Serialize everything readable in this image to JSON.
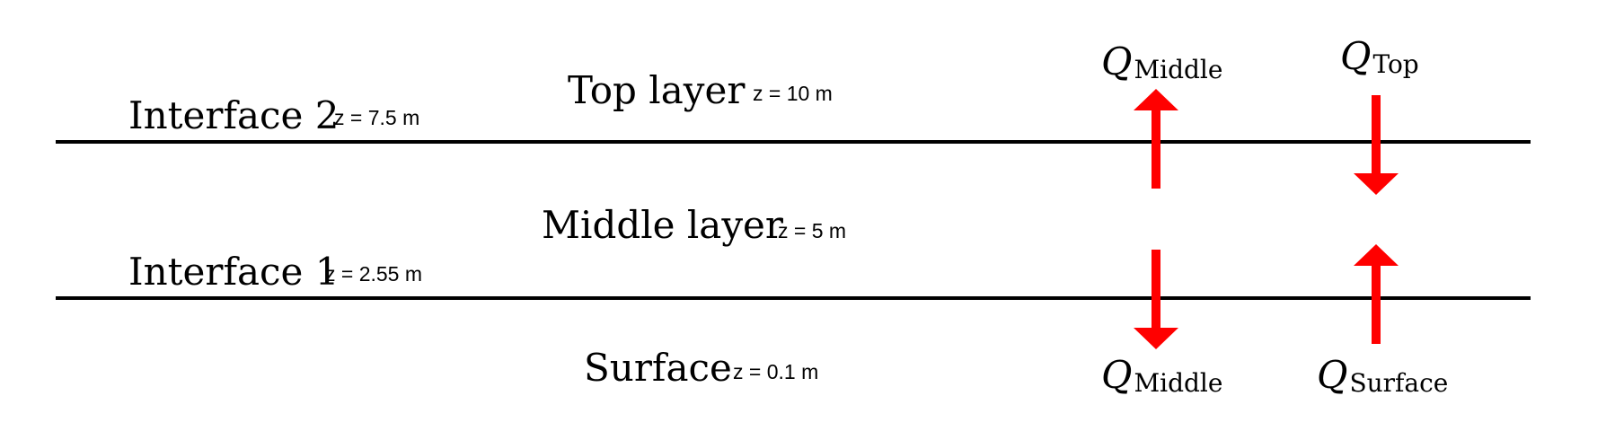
{
  "interfaces": [
    {
      "label": "Interface 2",
      "z": "z = 7.5 m"
    },
    {
      "label": "Interface 1",
      "z": "z = 2.55 m"
    }
  ],
  "layers": [
    {
      "label": "Top layer",
      "z": "z = 10 m"
    },
    {
      "label": "Middle layer",
      "z": "z = 5 m"
    },
    {
      "label": "Surface",
      "z": "z = 0.1 m"
    }
  ],
  "fluxes": {
    "symbol": "Q",
    "top_left": {
      "sub": "Middle",
      "direction": "up"
    },
    "top_right": {
      "sub": "Top",
      "direction": "down"
    },
    "bottom_left": {
      "sub": "Middle",
      "direction": "down"
    },
    "bottom_right": {
      "sub": "Surface",
      "direction": "up"
    }
  },
  "colors": {
    "arrow": "#ff0000",
    "line": "#000000"
  }
}
